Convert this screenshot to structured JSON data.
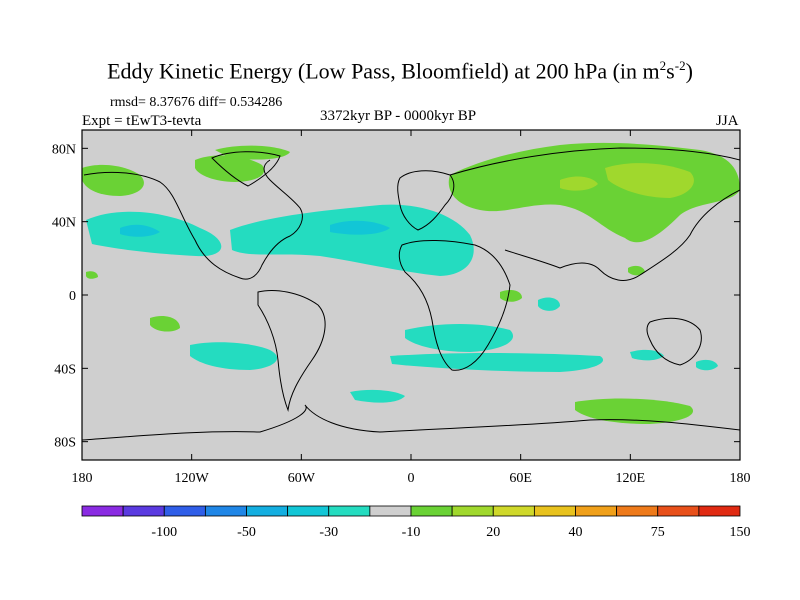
{
  "title": {
    "main": "Eddy Kinetic Energy (Low Pass, Bloomfield) at 200 hPa (in m",
    "sup1": "2",
    "mid": "s",
    "sup2": "-2",
    "end": ")"
  },
  "stats": "rmsd= 8.37676 diff= 0.534286",
  "experiment": "Expt = tEwT3-tevta",
  "period": "3372kyr BP - 0000kyr BP",
  "season": "JJA",
  "map": {
    "lon_ticks": [
      "180",
      "120W",
      "60W",
      "0",
      "60E",
      "120E",
      "180"
    ],
    "lat_ticks": [
      "80N",
      "40N",
      "0",
      "40S",
      "80S"
    ]
  },
  "colorbar": {
    "colors": [
      "#8a2be2",
      "#5a3ae0",
      "#2f5ee8",
      "#1f86e6",
      "#13aee0",
      "#12c6d6",
      "#24dcc0",
      "#cfcfcf",
      "#6ad235",
      "#a0d82d",
      "#cfd82a",
      "#e8c21e",
      "#f0a01a",
      "#ee7a1a",
      "#e8501a",
      "#e02a12"
    ],
    "labels": [
      "-100",
      "-50",
      "-30",
      "-10",
      "20",
      "40",
      "75",
      "150"
    ]
  }
}
